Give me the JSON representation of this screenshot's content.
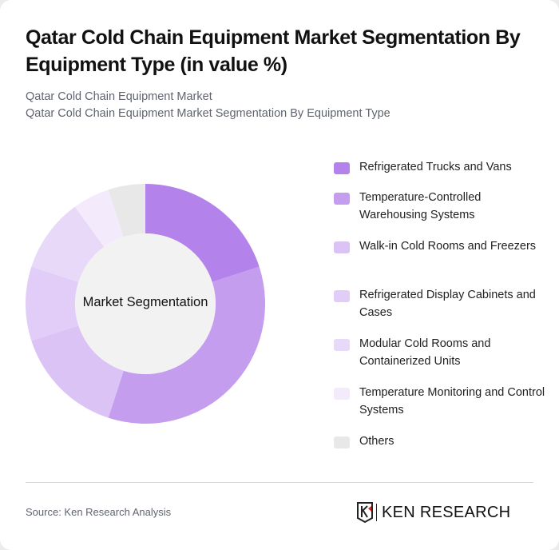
{
  "header": {
    "title": "Qatar Cold Chain Equipment Market Segmentation By Equipment Type (in value %)",
    "subtitle_1": "Qatar Cold Chain Equipment Market",
    "subtitle_2": "Qatar Cold Chain Equipment Market Segmentation By Equipment Type"
  },
  "chart": {
    "center_label": "Market Segmentation"
  },
  "legend": [
    {
      "label": "Refrigerated Trucks and Vans",
      "color": "#b382ea"
    },
    {
      "label": "Temperature-Controlled Warehousing Systems",
      "color": "#c59def"
    },
    {
      "label": "Walk-in Cold Rooms and Freezers",
      "color": "#dbc3f6"
    },
    {
      "label": "Refrigerated Display Cabinets and Cases",
      "color": "#e1cdf7"
    },
    {
      "label": "Modular Cold Rooms and Containerized Units",
      "color": "#e8d9f9"
    },
    {
      "label": "Temperature Monitoring and Control Systems",
      "color": "#f3ebfc"
    },
    {
      "label": "Others",
      "color": "#e8e8e8"
    }
  ],
  "footer": {
    "source": "Source: Ken Research Analysis",
    "logo_text": "KEN RESEARCH"
  },
  "chart_data": {
    "type": "pie",
    "subtype": "donut",
    "title": "Qatar Cold Chain Equipment Market Segmentation By Equipment Type (in value %)",
    "center_label": "Market Segmentation",
    "categories": [
      "Refrigerated Trucks and Vans",
      "Temperature-Controlled Warehousing Systems",
      "Walk-in Cold Rooms and Freezers",
      "Refrigerated Display Cabinets and Cases",
      "Modular Cold Rooms and Containerized Units",
      "Temperature Monitoring and Control Systems",
      "Others"
    ],
    "values": [
      20,
      35,
      15,
      10,
      10,
      5,
      5
    ],
    "colors": [
      "#b382ea",
      "#c59def",
      "#dbc3f6",
      "#e1cdf7",
      "#e8d9f9",
      "#f3ebfc",
      "#e8e8e8"
    ],
    "legend_position": "right",
    "unit": "%"
  }
}
